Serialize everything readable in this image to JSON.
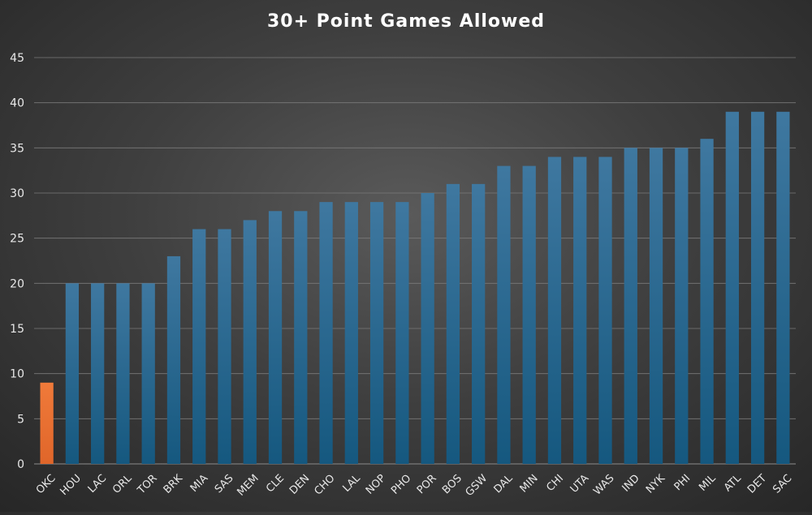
{
  "chart_data": {
    "type": "bar",
    "title": "30+ Point Games Allowed",
    "xlabel": "",
    "ylabel": "",
    "ylim": [
      0,
      45
    ],
    "yticks": [
      0,
      5,
      10,
      15,
      20,
      25,
      30,
      35,
      40,
      45
    ],
    "grid": true,
    "categories": [
      "OKC",
      "HOU",
      "LAC",
      "ORL",
      "TOR",
      "BRK",
      "MIA",
      "SAS",
      "MEM",
      "CLE",
      "DEN",
      "CHO",
      "LAL",
      "NOP",
      "PHO",
      "POR",
      "BOS",
      "GSW",
      "DAL",
      "MIN",
      "CHI",
      "UTA",
      "WAS",
      "IND",
      "NYK",
      "PHI",
      "MIL",
      "ATL",
      "DET",
      "SAC"
    ],
    "values": [
      9,
      20,
      20,
      20,
      20,
      23,
      26,
      26,
      27,
      28,
      28,
      29,
      29,
      29,
      29,
      30,
      31,
      31,
      33,
      33,
      34,
      34,
      34,
      35,
      35,
      35,
      36,
      39,
      39,
      39
    ],
    "highlight_category": "OKC",
    "colors": {
      "bar": "#1f5f86",
      "highlight": "#ed7031",
      "grid": "#7a7a7a",
      "text": "#e8e8e8"
    }
  }
}
